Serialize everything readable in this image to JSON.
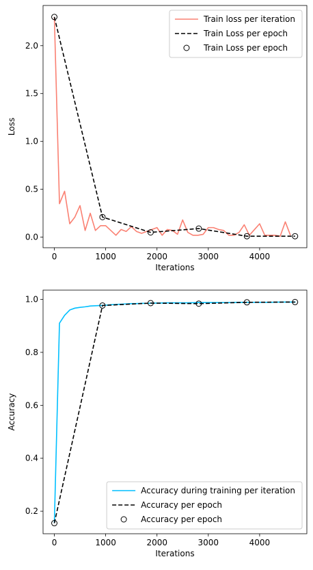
{
  "chart_data": [
    {
      "type": "line",
      "xlabel": "Iterations",
      "ylabel": "Loss",
      "xlim": [
        -220,
        4920
      ],
      "ylim": [
        -0.11,
        2.42
      ],
      "xticks": [
        0,
        1000,
        2000,
        3000,
        4000
      ],
      "xtick_labels": [
        "0",
        "1000",
        "2000",
        "3000",
        "4000"
      ],
      "yticks": [
        0.0,
        0.5,
        1.0,
        1.5,
        2.0
      ],
      "ytick_labels": [
        "0.0",
        "0.5",
        "1.0",
        "1.5",
        "2.0"
      ],
      "grid": false,
      "legend_position": "top-right",
      "series": [
        {
          "name": "Train loss per iteration",
          "style": "line",
          "color": "#fa8072",
          "x": [
            0,
            100,
            200,
            300,
            400,
            500,
            600,
            700,
            800,
            900,
            1000,
            1100,
            1200,
            1300,
            1400,
            1500,
            1600,
            1700,
            1800,
            1900,
            2000,
            2100,
            2200,
            2300,
            2400,
            2500,
            2600,
            2700,
            2800,
            2900,
            3000,
            3100,
            3200,
            3300,
            3400,
            3500,
            3600,
            3700,
            3800,
            3900,
            4000,
            4100,
            4200,
            4300,
            4400,
            4500,
            4600
          ],
          "y": [
            2.3,
            0.35,
            0.48,
            0.14,
            0.21,
            0.33,
            0.07,
            0.25,
            0.07,
            0.12,
            0.12,
            0.07,
            0.02,
            0.08,
            0.06,
            0.11,
            0.06,
            0.04,
            0.06,
            0.08,
            0.1,
            0.02,
            0.08,
            0.07,
            0.03,
            0.18,
            0.05,
            0.02,
            0.02,
            0.03,
            0.1,
            0.1,
            0.08,
            0.07,
            0.02,
            0.02,
            0.05,
            0.13,
            0.02,
            0.08,
            0.14,
            0.02,
            0.02,
            0.02,
            0.01,
            0.16,
            0.02
          ]
        },
        {
          "name": "Train Loss per epoch",
          "style": "dashed",
          "color": "#000000",
          "x": [
            0,
            938,
            1876,
            2814,
            3752,
            4690
          ],
          "y": [
            2.3,
            0.21,
            0.05,
            0.09,
            0.01,
            0.01
          ]
        },
        {
          "name": "Train Loss per epoch",
          "style": "markers",
          "color": "#000000",
          "x": [
            0,
            938,
            1876,
            2814,
            3752,
            4690
          ],
          "y": [
            2.3,
            0.21,
            0.05,
            0.09,
            0.01,
            0.01
          ]
        }
      ]
    },
    {
      "type": "line",
      "xlabel": "Iterations",
      "ylabel": "Accuracy",
      "xlim": [
        -220,
        4920
      ],
      "ylim": [
        0.115,
        1.035
      ],
      "xticks": [
        0,
        1000,
        2000,
        3000,
        4000
      ],
      "xtick_labels": [
        "0",
        "1000",
        "2000",
        "3000",
        "4000"
      ],
      "yticks": [
        0.2,
        0.4,
        0.6,
        0.8,
        1.0
      ],
      "ytick_labels": [
        "0.2",
        "0.4",
        "0.6",
        "0.8",
        "1.0"
      ],
      "grid": false,
      "legend_position": "bottom-right",
      "series": [
        {
          "name": "Accuracy during training per iteration",
          "style": "line",
          "color": "#00bfff",
          "x": [
            0,
            100,
            200,
            300,
            400,
            500,
            600,
            700,
            800,
            900,
            1000,
            1100,
            1200,
            1300,
            1400,
            1500,
            1600,
            1700,
            1800,
            1900,
            2000,
            2200,
            2400,
            2600,
            2800,
            3000,
            3200,
            3400,
            3600,
            3800,
            4000,
            4200,
            4400,
            4600,
            4700
          ],
          "y": [
            0.155,
            0.91,
            0.94,
            0.96,
            0.967,
            0.97,
            0.972,
            0.975,
            0.976,
            0.977,
            0.978,
            0.98,
            0.981,
            0.982,
            0.983,
            0.984,
            0.984,
            0.985,
            0.985,
            0.986,
            0.986,
            0.987,
            0.987,
            0.987,
            0.988,
            0.988,
            0.988,
            0.988,
            0.989,
            0.989,
            0.989,
            0.989,
            0.99,
            0.99,
            0.99
          ]
        },
        {
          "name": "Accuracy per epoch",
          "style": "dashed",
          "color": "#000000",
          "x": [
            0,
            938,
            1876,
            2814,
            3752,
            4690
          ],
          "y": [
            0.155,
            0.977,
            0.986,
            0.984,
            0.989,
            0.99
          ]
        },
        {
          "name": "Accuracy per epoch",
          "style": "markers",
          "color": "#000000",
          "x": [
            0,
            938,
            1876,
            2814,
            3752,
            4690
          ],
          "y": [
            0.155,
            0.977,
            0.986,
            0.984,
            0.989,
            0.99
          ]
        }
      ]
    }
  ]
}
